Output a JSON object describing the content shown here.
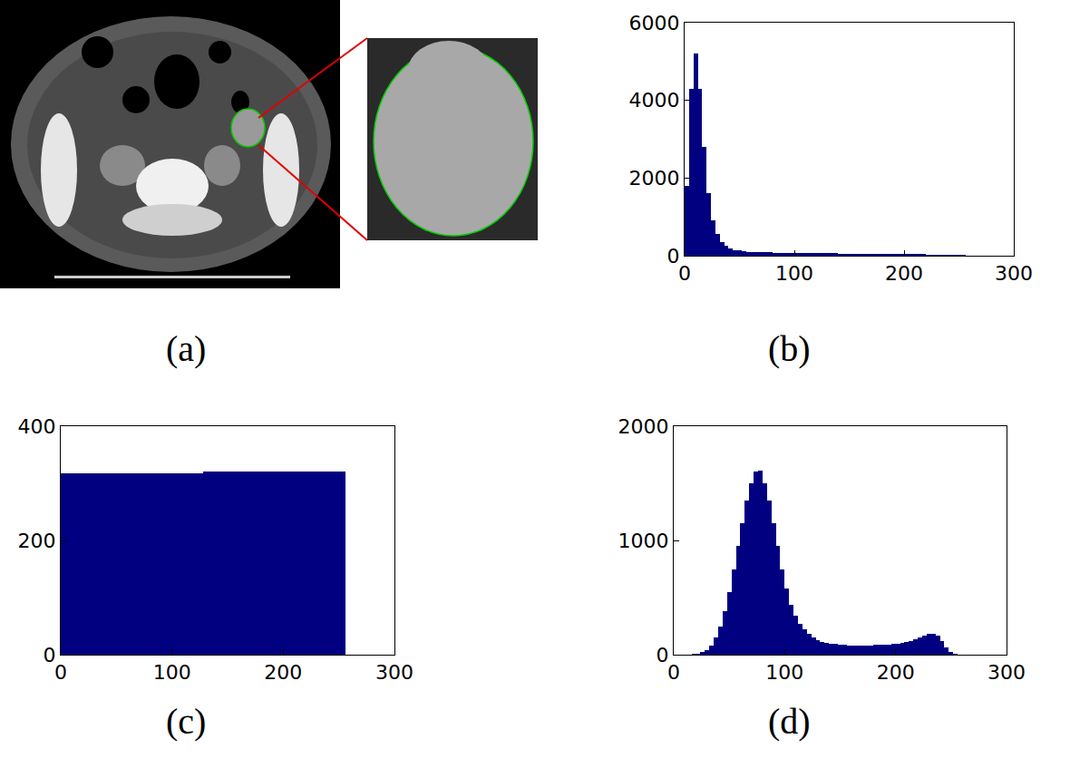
{
  "image_panel": {
    "label": "(a)"
  },
  "chart_data": [
    {
      "type": "bar",
      "title": "(b)",
      "x": [
        2,
        6,
        10,
        14,
        18,
        22,
        26,
        30,
        34,
        38,
        42,
        46,
        50,
        54,
        58,
        62,
        66,
        70,
        74,
        78,
        82,
        86,
        90,
        94,
        98,
        102,
        106,
        110,
        114,
        118,
        122,
        126,
        130,
        134,
        138,
        142,
        146,
        150,
        154,
        158,
        162,
        166,
        170,
        174,
        178,
        182,
        186,
        190,
        194,
        198,
        202,
        206,
        210,
        214,
        218,
        222,
        226,
        230,
        234,
        238,
        242,
        246,
        250,
        254
      ],
      "values": [
        1800,
        4300,
        5200,
        4300,
        2800,
        1600,
        900,
        550,
        350,
        250,
        190,
        150,
        130,
        110,
        100,
        95,
        90,
        88,
        85,
        82,
        80,
        78,
        76,
        74,
        72,
        70,
        68,
        66,
        65,
        64,
        63,
        62,
        61,
        60,
        59,
        58,
        57,
        56,
        55,
        54,
        53,
        52,
        51,
        50,
        50,
        49,
        48,
        47,
        46,
        45,
        44,
        42,
        40,
        38,
        36,
        34,
        32,
        30,
        28,
        26,
        24,
        22,
        20,
        15
      ],
      "color": "#000080",
      "xlim": [
        0,
        300
      ],
      "xticks": [
        0,
        100,
        200,
        300
      ],
      "ylim": [
        0,
        6000
      ],
      "yticks": [
        0,
        2000,
        4000,
        6000
      ],
      "grid": false
    },
    {
      "type": "bar",
      "title": "(c)",
      "x": [
        2,
        6,
        10,
        14,
        18,
        22,
        26,
        30,
        34,
        38,
        42,
        46,
        50,
        54,
        58,
        62,
        66,
        70,
        74,
        78,
        82,
        86,
        90,
        94,
        98,
        102,
        106,
        110,
        114,
        118,
        122,
        126,
        130,
        134,
        138,
        142,
        146,
        150,
        154,
        158,
        162,
        166,
        170,
        174,
        178,
        182,
        186,
        190,
        194,
        198,
        202,
        206,
        210,
        214,
        218,
        222,
        226,
        230,
        234,
        238,
        242,
        246,
        250,
        254
      ],
      "values": [
        318,
        318,
        318,
        318,
        318,
        318,
        318,
        318,
        318,
        318,
        318,
        318,
        318,
        318,
        318,
        318,
        318,
        318,
        318,
        318,
        318,
        318,
        318,
        318,
        318,
        318,
        318,
        318,
        318,
        318,
        318,
        318,
        321,
        321,
        321,
        321,
        321,
        321,
        321,
        321,
        321,
        321,
        321,
        321,
        321,
        321,
        321,
        321,
        321,
        321,
        321,
        321,
        321,
        321,
        321,
        321,
        321,
        321,
        321,
        321,
        321,
        321,
        321,
        321
      ],
      "color": "#000080",
      "xlim": [
        0,
        300
      ],
      "xticks": [
        0,
        100,
        200,
        300
      ],
      "ylim": [
        0,
        400
      ],
      "yticks": [
        0,
        200,
        400
      ],
      "grid": false
    },
    {
      "type": "bar",
      "title": "(d)",
      "x": [
        2,
        6,
        10,
        14,
        18,
        22,
        26,
        30,
        34,
        38,
        42,
        46,
        50,
        54,
        58,
        62,
        66,
        70,
        74,
        78,
        82,
        86,
        90,
        94,
        98,
        102,
        106,
        110,
        114,
        118,
        122,
        126,
        130,
        134,
        138,
        142,
        146,
        150,
        154,
        158,
        162,
        166,
        170,
        174,
        178,
        182,
        186,
        190,
        194,
        198,
        202,
        206,
        210,
        214,
        218,
        222,
        226,
        230,
        234,
        238,
        242,
        246,
        250,
        254
      ],
      "values": [
        0,
        0,
        0,
        2,
        5,
        10,
        20,
        40,
        80,
        150,
        250,
        380,
        550,
        750,
        950,
        1150,
        1350,
        1500,
        1600,
        1610,
        1500,
        1350,
        1150,
        950,
        750,
        580,
        440,
        340,
        270,
        220,
        180,
        150,
        130,
        115,
        105,
        98,
        92,
        88,
        85,
        82,
        80,
        80,
        80,
        80,
        82,
        84,
        86,
        88,
        90,
        92,
        95,
        100,
        110,
        120,
        135,
        150,
        165,
        180,
        185,
        170,
        120,
        60,
        20,
        5
      ],
      "color": "#000080",
      "xlim": [
        0,
        300
      ],
      "xticks": [
        0,
        100,
        200,
        300
      ],
      "ylim": [
        0,
        2000
      ],
      "yticks": [
        0,
        1000,
        2000
      ],
      "grid": false
    }
  ]
}
